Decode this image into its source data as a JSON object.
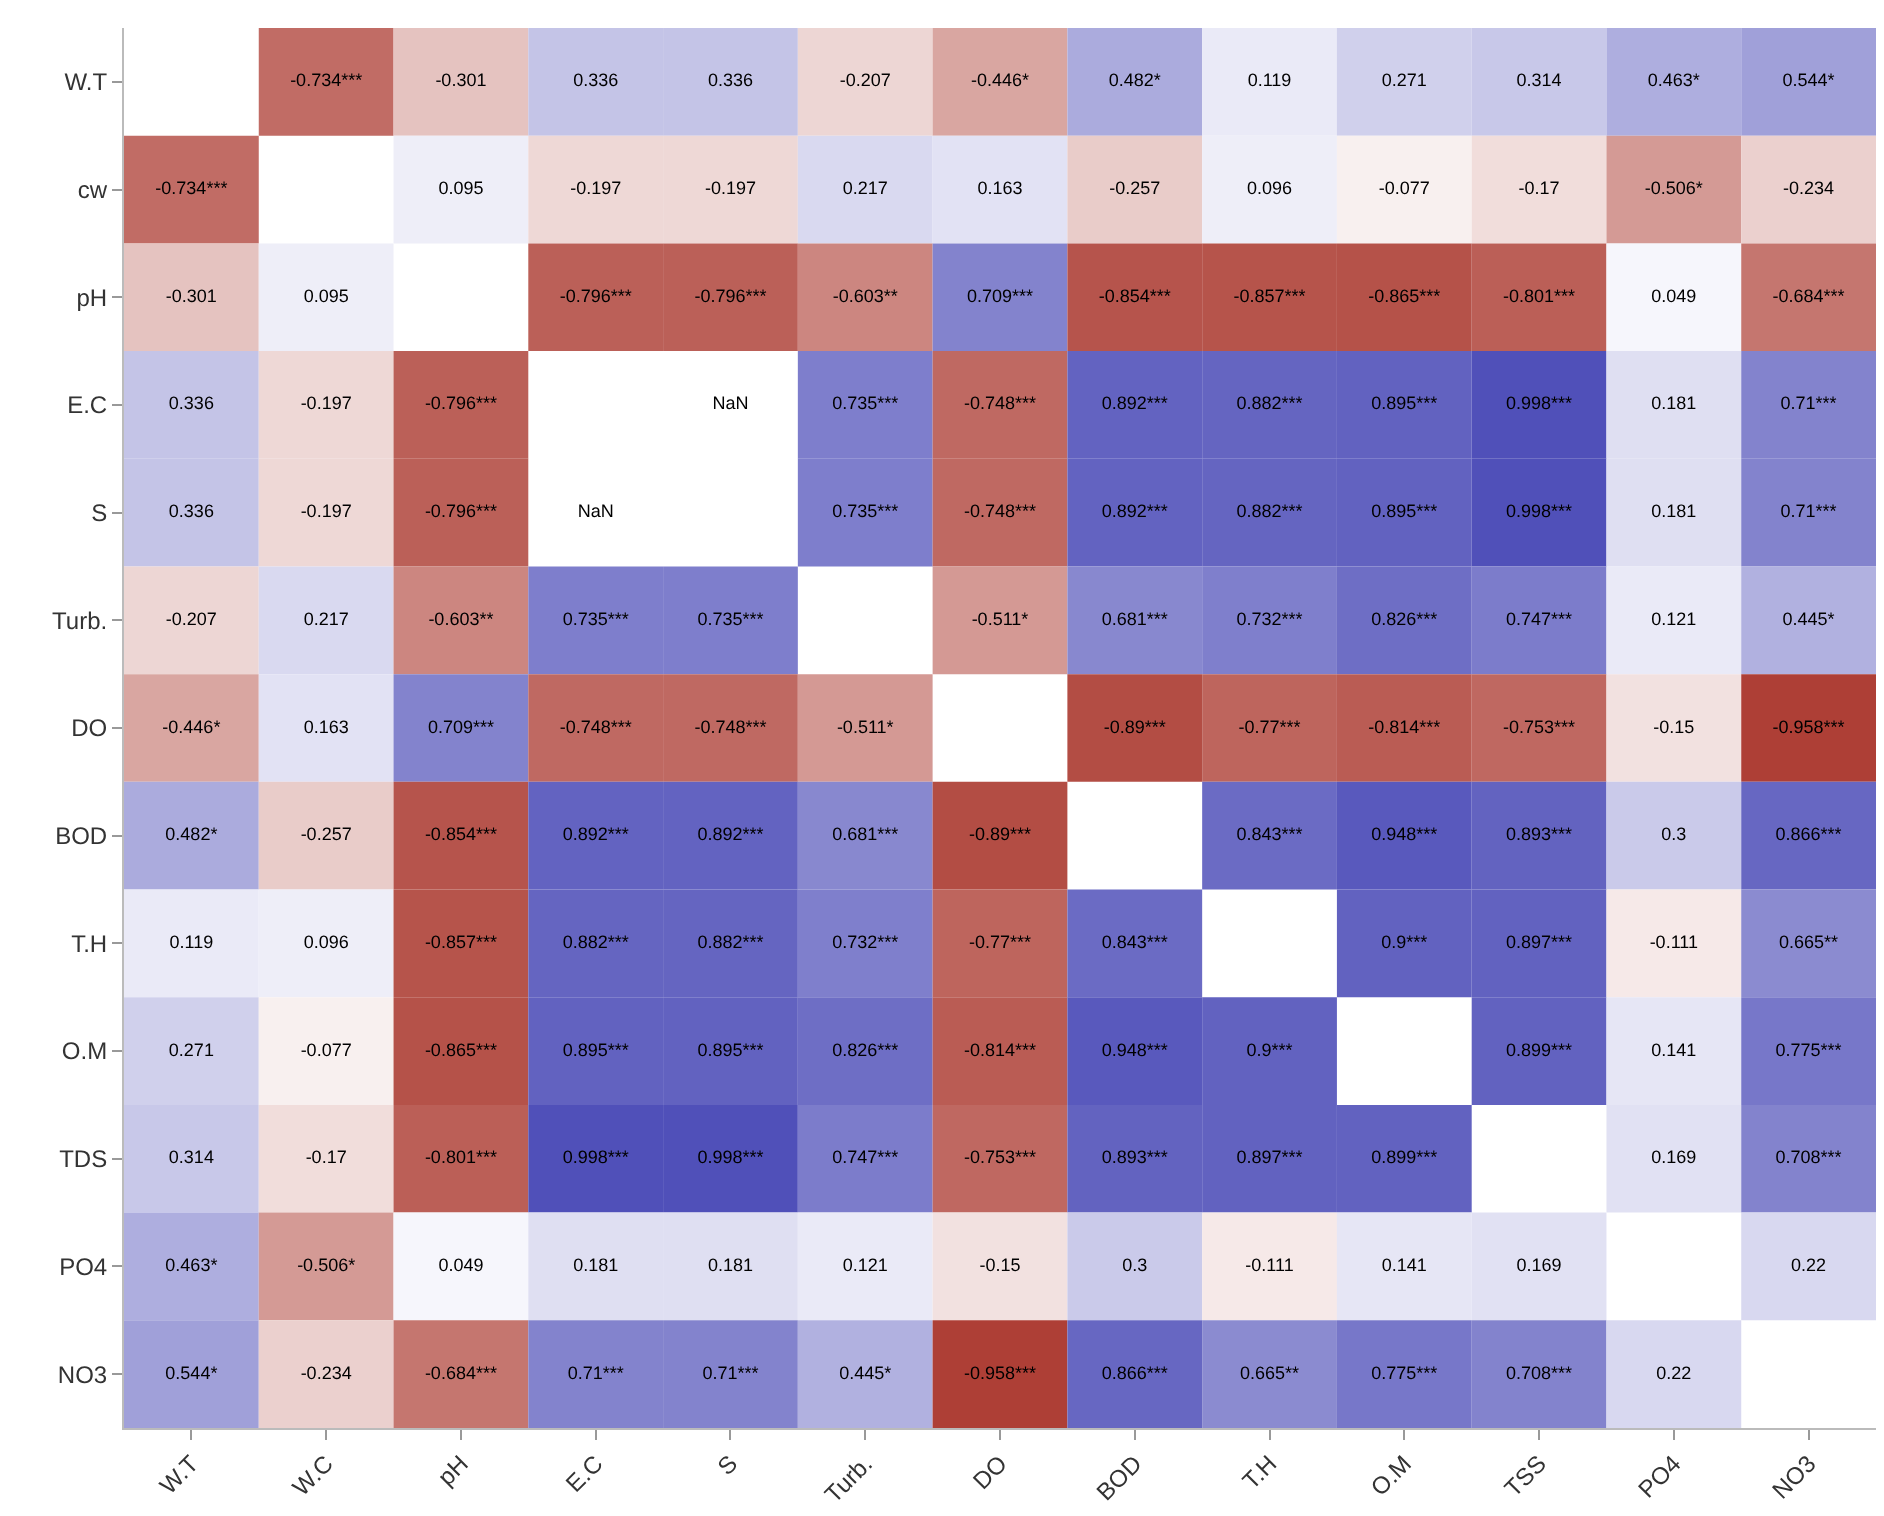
{
  "chart_data": {
    "type": "heatmap",
    "categories": [
      "W.T",
      "W.C",
      "pH",
      "E.C",
      "S",
      "Turb.",
      "DO",
      "BOD",
      "T.H",
      "O.M",
      "TSS",
      "PO4",
      "NO3"
    ],
    "y_categories": [
      "W.T",
      "cw",
      "pH",
      "E.C",
      "S",
      "Turb.",
      "DO",
      "BOD",
      "T.H",
      "O.M",
      "TDS",
      "PO4",
      "NO3"
    ],
    "cells": [
      [
        null,
        -0.734,
        -0.301,
        0.336,
        0.336,
        -0.207,
        -0.446,
        0.482,
        0.119,
        0.271,
        0.314,
        0.463,
        0.544
      ],
      [
        -0.734,
        null,
        0.095,
        -0.197,
        -0.197,
        0.217,
        0.163,
        -0.257,
        0.096,
        -0.077,
        -0.17,
        -0.506,
        -0.234
      ],
      [
        -0.301,
        0.095,
        null,
        -0.796,
        -0.796,
        -0.603,
        0.709,
        -0.854,
        -0.857,
        -0.865,
        -0.801,
        0.049,
        -0.684
      ],
      [
        0.336,
        -0.197,
        -0.796,
        null,
        null,
        0.735,
        -0.748,
        0.892,
        0.882,
        0.895,
        0.998,
        0.181,
        0.71
      ],
      [
        0.336,
        -0.197,
        -0.796,
        null,
        null,
        0.735,
        -0.748,
        0.892,
        0.882,
        0.895,
        0.998,
        0.181,
        0.71
      ],
      [
        -0.207,
        0.217,
        -0.603,
        0.735,
        0.735,
        null,
        -0.511,
        0.681,
        0.732,
        0.826,
        0.747,
        0.121,
        0.445
      ],
      [
        -0.446,
        0.163,
        0.709,
        -0.748,
        -0.748,
        -0.511,
        null,
        -0.89,
        -0.77,
        -0.814,
        -0.753,
        -0.15,
        -0.958
      ],
      [
        0.482,
        -0.257,
        -0.854,
        0.892,
        0.892,
        0.681,
        -0.89,
        null,
        0.843,
        0.948,
        0.893,
        0.3,
        0.866
      ],
      [
        0.119,
        0.096,
        -0.857,
        0.882,
        0.882,
        0.732,
        -0.77,
        0.843,
        null,
        0.9,
        0.897,
        -0.111,
        0.665
      ],
      [
        0.271,
        -0.077,
        -0.865,
        0.895,
        0.895,
        0.826,
        -0.814,
        0.948,
        0.9,
        null,
        0.899,
        0.141,
        0.775
      ],
      [
        0.314,
        -0.17,
        -0.801,
        0.998,
        0.998,
        0.747,
        -0.753,
        0.893,
        0.897,
        0.899,
        null,
        0.169,
        0.708
      ],
      [
        0.463,
        -0.506,
        0.049,
        0.181,
        0.181,
        0.121,
        -0.15,
        0.3,
        -0.111,
        0.141,
        0.169,
        null,
        0.22
      ],
      [
        0.544,
        -0.234,
        -0.684,
        0.71,
        0.71,
        0.445,
        -0.958,
        0.866,
        0.665,
        0.775,
        0.708,
        0.22,
        null
      ]
    ],
    "cell_labels": [
      [
        null,
        "-0.734***",
        "-0.301",
        "0.336",
        "0.336",
        "-0.207",
        "-0.446*",
        "0.482*",
        "0.119",
        "0.271",
        "0.314",
        "0.463*",
        "0.544*"
      ],
      [
        "-0.734***",
        null,
        "0.095",
        "-0.197",
        "-0.197",
        "0.217",
        "0.163",
        "-0.257",
        "0.096",
        "-0.077",
        "-0.17",
        "-0.506*",
        "-0.234"
      ],
      [
        "-0.301",
        "0.095",
        null,
        "-0.796***",
        "-0.796***",
        "-0.603**",
        "0.709***",
        "-0.854***",
        "-0.857***",
        "-0.865***",
        "-0.801***",
        "0.049",
        "-0.684***"
      ],
      [
        "0.336",
        "-0.197",
        "-0.796***",
        null,
        "NaN",
        "0.735***",
        "-0.748***",
        "0.892***",
        "0.882***",
        "0.895***",
        "0.998***",
        "0.181",
        "0.71***"
      ],
      [
        "0.336",
        "-0.197",
        "-0.796***",
        "NaN",
        null,
        "0.735***",
        "-0.748***",
        "0.892***",
        "0.882***",
        "0.895***",
        "0.998***",
        "0.181",
        "0.71***"
      ],
      [
        "-0.207",
        "0.217",
        "-0.603**",
        "0.735***",
        "0.735***",
        null,
        "-0.511*",
        "0.681***",
        "0.732***",
        "0.826***",
        "0.747***",
        "0.121",
        "0.445*"
      ],
      [
        "-0.446*",
        "0.163",
        "0.709***",
        "-0.748***",
        "-0.748***",
        "-0.511*",
        null,
        "-0.89***",
        "-0.77***",
        "-0.814***",
        "-0.753***",
        "-0.15",
        "-0.958***"
      ],
      [
        "0.482*",
        "-0.257",
        "-0.854***",
        "0.892***",
        "0.892***",
        "0.681***",
        "-0.89***",
        null,
        "0.843***",
        "0.948***",
        "0.893***",
        "0.3",
        "0.866***"
      ],
      [
        "0.119",
        "0.096",
        "-0.857***",
        "0.882***",
        "0.882***",
        "0.732***",
        "-0.77***",
        "0.843***",
        null,
        "0.9***",
        "0.897***",
        "-0.111",
        "0.665**"
      ],
      [
        "0.271",
        "-0.077",
        "-0.865***",
        "0.895***",
        "0.895***",
        "0.826***",
        "-0.814***",
        "0.948***",
        "0.9***",
        null,
        "0.899***",
        "0.141",
        "0.775***"
      ],
      [
        "0.314",
        "-0.17",
        "-0.801***",
        "0.998***",
        "0.998***",
        "0.747***",
        "-0.753***",
        "0.893***",
        "0.897***",
        "0.899***",
        null,
        "0.169",
        "0.708***"
      ],
      [
        "0.463*",
        "-0.506*",
        "0.049",
        "0.181",
        "0.181",
        "0.121",
        "-0.15",
        "0.3",
        "-0.111",
        "0.141",
        "0.169",
        null,
        "0.22"
      ],
      [
        "0.544*",
        "-0.234",
        "-0.684***",
        "0.71***",
        "0.71***",
        "0.445*",
        "-0.958***",
        "0.866***",
        "0.665**",
        "0.775***",
        "0.708***",
        "0.22",
        null
      ]
    ]
  }
}
